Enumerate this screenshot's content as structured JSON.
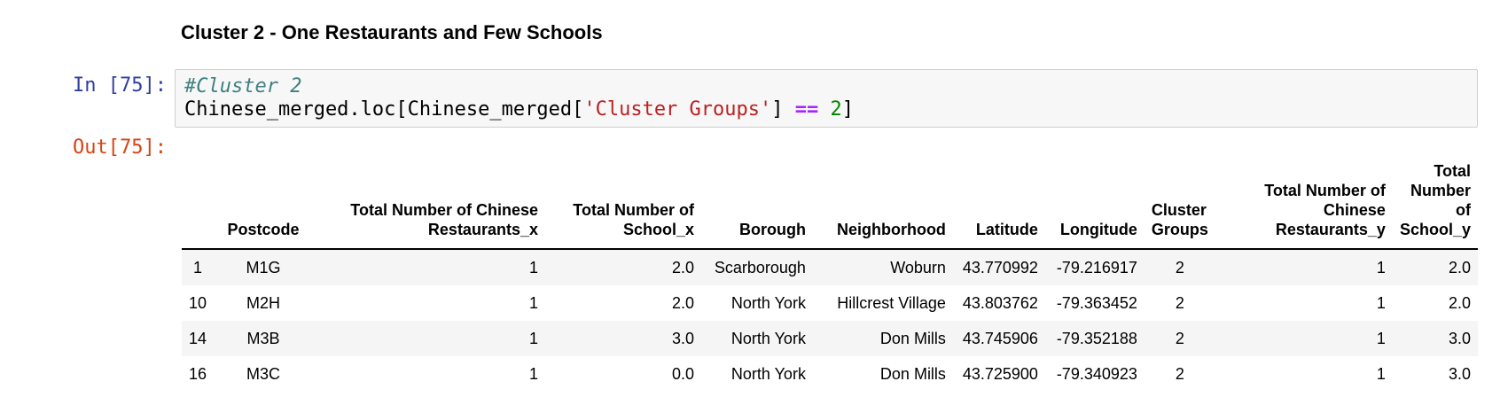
{
  "heading": "Cluster 2 - One Restaurants and Few Schools",
  "cell": {
    "in_prompt": "In [75]:",
    "out_prompt": "Out[75]:",
    "code": {
      "comment": "#Cluster 2",
      "line2_a": "Chinese_merged.loc[Chinese_merged[",
      "line2_str": "'Cluster Groups'",
      "line2_b": "] ",
      "line2_op": "==",
      "line2_space": " ",
      "line2_num": "2",
      "line2_c": "]"
    }
  },
  "table": {
    "headers": [
      "",
      "Postcode",
      "Total Number of Chinese Restaurants_x",
      "Total Number of School_x",
      "Borough",
      "Neighborhood",
      "Latitude",
      "Longitude",
      "Cluster Groups",
      "Total Number of Chinese Restaurants_y",
      "Total Number of School_y"
    ],
    "rows": [
      [
        "1",
        "M1G",
        "1",
        "2.0",
        "Scarborough",
        "Woburn",
        "43.770992",
        "-79.216917",
        "2",
        "1",
        "2.0"
      ],
      [
        "10",
        "M2H",
        "1",
        "2.0",
        "North York",
        "Hillcrest Village",
        "43.803762",
        "-79.363452",
        "2",
        "1",
        "2.0"
      ],
      [
        "14",
        "M3B",
        "1",
        "3.0",
        "North York",
        "Don Mills",
        "43.745906",
        "-79.352188",
        "2",
        "1",
        "3.0"
      ],
      [
        "16",
        "M3C",
        "1",
        "0.0",
        "North York",
        "Don Mills",
        "43.725900",
        "-79.340923",
        "2",
        "1",
        "3.0"
      ]
    ]
  }
}
